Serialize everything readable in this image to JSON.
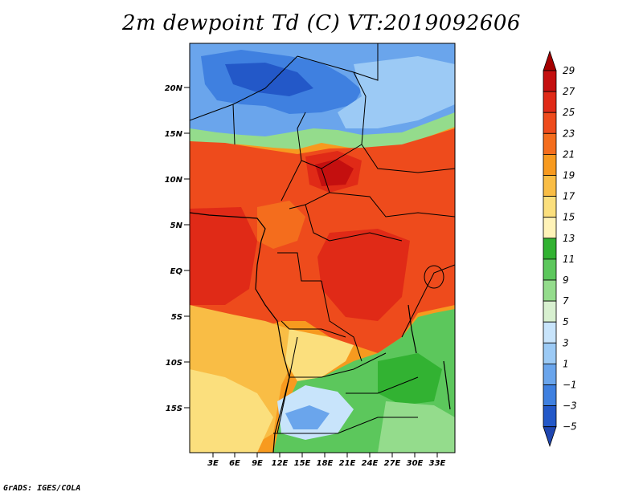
{
  "title": "2m dewpoint Td (C) VT:2019092606",
  "credit": "GrADS: IGES/COLA",
  "lat_labels": [
    "20N",
    "15N",
    "10N",
    "5N",
    "EQ",
    "5S",
    "10S",
    "15S"
  ],
  "lon_labels": [
    "3E",
    "6E",
    "9E",
    "12E",
    "15E",
    "18E",
    "21E",
    "24E",
    "27E",
    "30E",
    "33E"
  ],
  "colorbar": {
    "labels": [
      "29",
      "27",
      "25",
      "23",
      "21",
      "19",
      "17",
      "15",
      "13",
      "11",
      "9",
      "7",
      "5",
      "3",
      "1",
      "−1",
      "−3",
      "−5"
    ],
    "colors": [
      "#a50000",
      "#c40f0f",
      "#e02a17",
      "#ee4b1c",
      "#f46d1d",
      "#f79a1f",
      "#f9bd45",
      "#fbdf7d",
      "#fff3b8",
      "#32b232",
      "#5cc75c",
      "#94dc8c",
      "#d8f0d0",
      "#c8e4fb",
      "#9ccaf5",
      "#6aa5ec",
      "#3f80e0",
      "#2358c8",
      "#1f46b0"
    ]
  }
}
